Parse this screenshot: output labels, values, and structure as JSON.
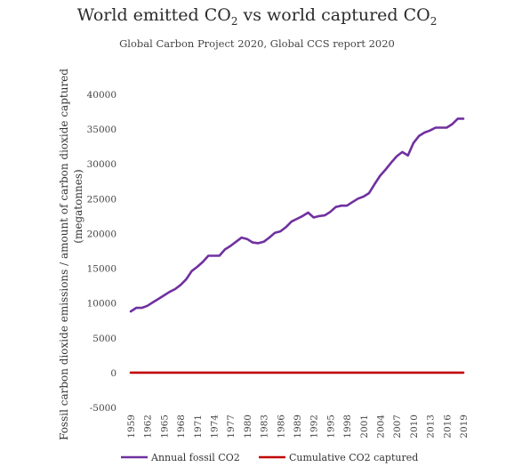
{
  "chart_data": {
    "type": "line",
    "title": "World emitted CO₂ vs world captured CO₂",
    "title_parts": [
      "World emitted CO",
      "2",
      " vs world captured CO",
      "2"
    ],
    "subtitle": "Global Carbon Project 2020, Global CCS report 2020",
    "ylabel": "Fossil carbon dioxide emissions / amount of carbon dioxide captured",
    "ylabel_unit": "(megatonnes)",
    "ylim": [
      -5000,
      40000
    ],
    "xlim": [
      1959,
      2019
    ],
    "yticks": [
      40000,
      35000,
      30000,
      25000,
      20000,
      15000,
      10000,
      5000,
      0,
      -5000
    ],
    "ytick_labels": [
      "40000",
      "35000",
      "30000",
      "25000",
      "20000",
      "15000",
      "10000",
      "5000",
      "0",
      "-5000"
    ],
    "xtick_labels": [
      "1959",
      "1962",
      "1965",
      "1968",
      "1971",
      "1974",
      "1977",
      "1980",
      "1983",
      "1986",
      "1989",
      "1992",
      "1995",
      "1998",
      "2001",
      "2004",
      "2007",
      "2010",
      "2013",
      "2016",
      "2019"
    ],
    "legend_position": "bottom",
    "grid": false,
    "series": [
      {
        "name": "Annual fossil CO2",
        "color": "#7030a0",
        "x": [
          1959,
          1960,
          1961,
          1962,
          1963,
          1964,
          1965,
          1966,
          1967,
          1968,
          1969,
          1970,
          1971,
          1972,
          1973,
          1974,
          1975,
          1976,
          1977,
          1978,
          1979,
          1980,
          1981,
          1982,
          1983,
          1984,
          1985,
          1986,
          1987,
          1988,
          1989,
          1990,
          1991,
          1992,
          1993,
          1994,
          1995,
          1996,
          1997,
          1998,
          1999,
          2000,
          2001,
          2002,
          2003,
          2004,
          2005,
          2006,
          2007,
          2008,
          2009,
          2010,
          2011,
          2012,
          2013,
          2014,
          2015,
          2016,
          2017,
          2018,
          2019
        ],
        "values": [
          8800,
          9300,
          9300,
          9600,
          10100,
          10600,
          11100,
          11600,
          12000,
          12600,
          13400,
          14600,
          15200,
          15900,
          16800,
          16800,
          16800,
          17700,
          18200,
          18800,
          19400,
          19200,
          18700,
          18600,
          18800,
          19400,
          20100,
          20300,
          20900,
          21700,
          22100,
          22500,
          23000,
          22300,
          22500,
          22600,
          23100,
          23800,
          24000,
          24000,
          24500,
          25000,
          25300,
          25800,
          27100,
          28300,
          29200,
          30200,
          31100,
          31700,
          31200,
          33000,
          34000,
          34500,
          34800,
          35200,
          35200,
          35200,
          35700,
          36500,
          36500
        ]
      },
      {
        "name": "Cumulative CO2 captured",
        "color": "#c00000",
        "x": [
          1959,
          2019
        ],
        "values": [
          0,
          0
        ]
      }
    ]
  }
}
